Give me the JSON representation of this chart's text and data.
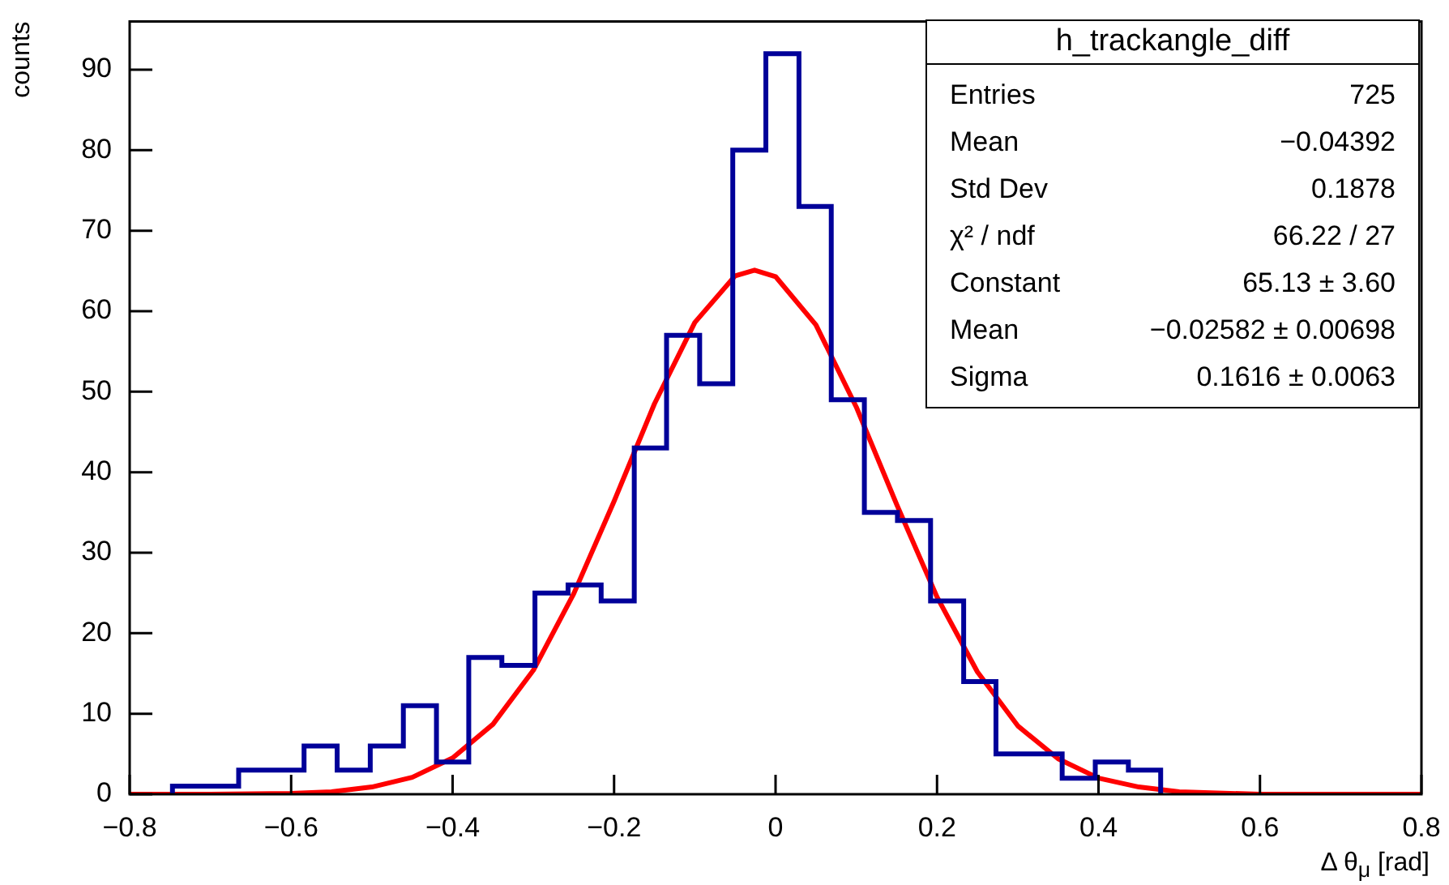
{
  "chart_data": {
    "type": "histogram",
    "title": "h_trackangle_diff",
    "xlabel": "Δ θ$_{μ}$ [rad]",
    "ylabel": "counts",
    "bins": [
      -0.747,
      -0.706,
      -0.665,
      -0.625,
      -0.584,
      -0.543,
      -0.502,
      -0.461,
      -0.42,
      -0.38,
      -0.339,
      -0.298,
      -0.257,
      -0.216,
      -0.175,
      -0.135,
      -0.094,
      -0.053,
      -0.012,
      0.029,
      0.069,
      0.11,
      0.151,
      0.192,
      0.233,
      0.273,
      0.314,
      0.355,
      0.396,
      0.437,
      0.477
    ],
    "values": [
      1,
      1,
      3,
      3,
      6,
      3,
      6,
      11,
      4,
      17,
      16,
      25,
      26,
      24,
      43,
      57,
      51,
      80,
      92,
      73,
      49,
      35,
      34,
      24,
      14,
      5,
      5,
      2,
      4,
      3
    ],
    "color": "#000099",
    "series": [
      {
        "type": "line",
        "color": "#ff0000",
        "x": [
          -0.8,
          -0.7,
          -0.6,
          -0.55,
          -0.5,
          -0.45,
          -0.4,
          -0.35,
          -0.3,
          -0.25,
          -0.2,
          -0.15,
          -0.1,
          -0.05,
          -0.026,
          0,
          0.05,
          0.1,
          0.15,
          0.2,
          0.25,
          0.3,
          0.35,
          0.4,
          0.45,
          0.5,
          0.6,
          0.8
        ],
        "values": [
          0,
          0,
          0.1,
          0.3,
          0.9,
          2.1,
          4.5,
          8.7,
          15.4,
          24.9,
          36.4,
          48.5,
          58.6,
          64.4,
          65.1,
          64.3,
          58.3,
          48.1,
          36.0,
          24.5,
          15.2,
          8.5,
          4.4,
          2.0,
          0.9,
          0.3,
          0,
          0
        ]
      }
    ],
    "xlim": [
      -0.8,
      0.8
    ],
    "xticks": [
      -0.8,
      -0.6,
      -0.4,
      -0.2,
      0,
      0.2,
      0.4,
      0.6,
      0.8
    ],
    "ylim": [
      0,
      96
    ],
    "yticks": [
      0,
      10,
      20,
      30,
      40,
      50,
      60,
      70,
      80,
      90
    ],
    "grid": false,
    "legend": false,
    "marker": "none",
    "annotations": [
      "Entries",
      "725",
      "Mean",
      "−0.04392",
      "Std Dev",
      "0.1878",
      "χ² / ndf",
      "66.22 / 27",
      "Constant",
      "65.13 ± 3.60",
      "Mean",
      "−0.02582 ± 0.00698",
      "Sigma",
      "0.1616 ± 0.0063"
    ]
  }
}
